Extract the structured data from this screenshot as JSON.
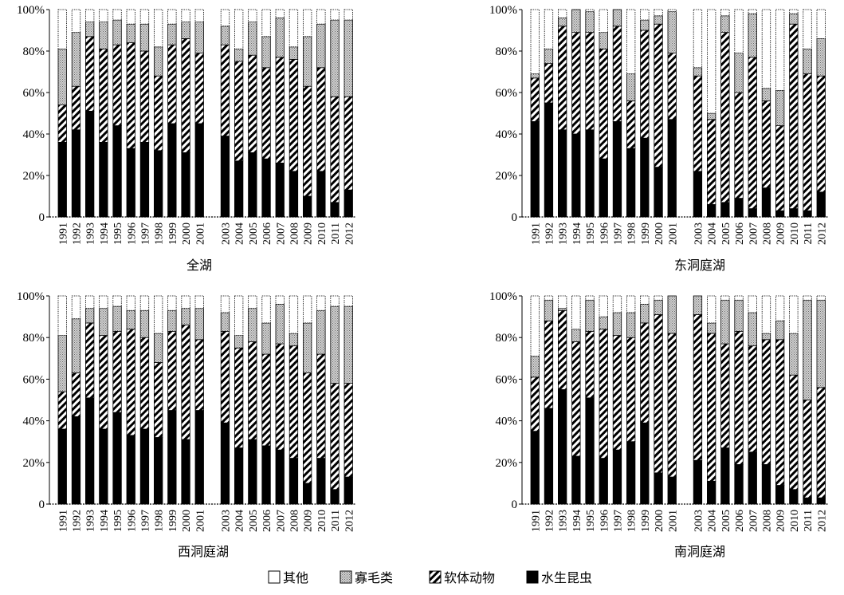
{
  "colors": {
    "insect": "#000000",
    "mollusc_stroke": "#000000",
    "oligo_fill": "#b8b8b8",
    "other": "#ffffff",
    "axis": "#000000"
  },
  "chart_data": [
    {
      "type": "bar",
      "stacked": true,
      "percent": true,
      "title": "全湖",
      "ylim": [
        0,
        100
      ],
      "yticks": [
        "0",
        "20%",
        "40%",
        "60%",
        "80%",
        "100%"
      ],
      "categories": [
        "1991",
        "1992",
        "1993",
        "1994",
        "1995",
        "1996",
        "1997",
        "1998",
        "1999",
        "2000",
        "2001",
        "2003",
        "2004",
        "2005",
        "2006",
        "2007",
        "2008",
        "2009",
        "2010",
        "2011",
        "2012"
      ],
      "series": [
        {
          "name": "水生昆虫",
          "values": [
            36,
            42,
            51,
            36,
            44,
            33,
            36,
            32,
            45,
            31,
            45,
            39,
            27,
            31,
            28,
            26,
            22,
            10,
            22,
            7,
            13
          ]
        },
        {
          "name": "软体动物",
          "values": [
            18,
            21,
            36,
            45,
            39,
            51,
            44,
            36,
            38,
            55,
            34,
            44,
            48,
            47,
            44,
            51,
            54,
            53,
            50,
            51,
            45
          ]
        },
        {
          "name": "寡毛类",
          "values": [
            27,
            26,
            7,
            13,
            12,
            9,
            13,
            14,
            10,
            8,
            15,
            9,
            6,
            16,
            15,
            19,
            6,
            24,
            21,
            37,
            37
          ]
        },
        {
          "name": "其他",
          "values": [
            19,
            11,
            6,
            6,
            5,
            7,
            7,
            18,
            7,
            6,
            6,
            8,
            19,
            6,
            13,
            4,
            18,
            13,
            7,
            5,
            5
          ]
        }
      ]
    },
    {
      "type": "bar",
      "stacked": true,
      "percent": true,
      "title": "东洞庭湖",
      "ylim": [
        0,
        100
      ],
      "yticks": [
        "0",
        "20%",
        "40%",
        "60%",
        "80%",
        "100%"
      ],
      "categories": [
        "1991",
        "1992",
        "1993",
        "1994",
        "1995",
        "1996",
        "1997",
        "1998",
        "1999",
        "2000",
        "2001",
        "2003",
        "2004",
        "2005",
        "2006",
        "2007",
        "2008",
        "2009",
        "2010",
        "2011",
        "2012"
      ],
      "series": [
        {
          "name": "水生昆虫",
          "values": [
            46,
            55,
            42,
            40,
            42,
            28,
            46,
            33,
            38,
            24,
            47,
            22,
            6,
            7,
            9,
            4,
            14,
            3,
            4,
            3,
            12
          ]
        },
        {
          "name": "软体动物",
          "values": [
            21,
            19,
            50,
            49,
            47,
            53,
            46,
            23,
            52,
            69,
            32,
            46,
            41,
            82,
            51,
            73,
            42,
            41,
            89,
            66,
            56
          ]
        },
        {
          "name": "寡毛类",
          "values": [
            2,
            7,
            4,
            11,
            10,
            8,
            8,
            13,
            5,
            4,
            20,
            4,
            3,
            8,
            19,
            21,
            6,
            17,
            5,
            12,
            18
          ]
        },
        {
          "name": "其他",
          "values": [
            31,
            19,
            4,
            0,
            1,
            11,
            0,
            31,
            5,
            3,
            1,
            28,
            50,
            3,
            21,
            2,
            38,
            39,
            2,
            19,
            14
          ]
        }
      ]
    },
    {
      "type": "bar",
      "stacked": true,
      "percent": true,
      "title": "西洞庭湖",
      "ylim": [
        0,
        100
      ],
      "yticks": [
        "0",
        "20%",
        "40%",
        "60%",
        "80%",
        "100%"
      ],
      "categories": [
        "1991",
        "1992",
        "1993",
        "1994",
        "1995",
        "1996",
        "1997",
        "1998",
        "1999",
        "2000",
        "2001",
        "2003",
        "2004",
        "2005",
        "2006",
        "2007",
        "2008",
        "2009",
        "2010",
        "2011",
        "2012"
      ],
      "series": [
        {
          "name": "水生昆虫",
          "values": [
            36,
            42,
            51,
            36,
            44,
            33,
            36,
            32,
            45,
            31,
            45,
            39,
            27,
            31,
            28,
            26,
            22,
            10,
            22,
            7,
            13
          ]
        },
        {
          "name": "软体动物",
          "values": [
            18,
            21,
            36,
            45,
            39,
            51,
            44,
            36,
            38,
            55,
            34,
            44,
            48,
            47,
            44,
            51,
            54,
            53,
            50,
            51,
            45
          ]
        },
        {
          "name": "寡毛类",
          "values": [
            27,
            26,
            7,
            13,
            12,
            9,
            13,
            14,
            10,
            8,
            15,
            9,
            6,
            16,
            15,
            19,
            6,
            24,
            21,
            37,
            37
          ]
        },
        {
          "name": "其他",
          "values": [
            19,
            11,
            6,
            6,
            5,
            7,
            7,
            18,
            7,
            6,
            6,
            8,
            19,
            6,
            13,
            4,
            18,
            13,
            7,
            5,
            5
          ]
        }
      ]
    },
    {
      "type": "bar",
      "stacked": true,
      "percent": true,
      "title": "南洞庭湖",
      "ylim": [
        0,
        100
      ],
      "yticks": [
        "0",
        "20%",
        "40%",
        "60%",
        "80%",
        "100%"
      ],
      "categories": [
        "1991",
        "1992",
        "1993",
        "1994",
        "1995",
        "1996",
        "1997",
        "1998",
        "1999",
        "2000",
        "2001",
        "2003",
        "2004",
        "2005",
        "2006",
        "2007",
        "2008",
        "2009",
        "2010",
        "2011",
        "2012"
      ],
      "series": [
        {
          "name": "水生昆虫",
          "values": [
            35,
            46,
            55,
            23,
            51,
            22,
            26,
            30,
            39,
            15,
            13,
            21,
            11,
            27,
            19,
            25,
            19,
            9,
            7,
            3,
            3
          ]
        },
        {
          "name": "软体动物",
          "values": [
            26,
            42,
            38,
            55,
            32,
            62,
            55,
            50,
            48,
            76,
            69,
            70,
            71,
            50,
            64,
            51,
            60,
            70,
            55,
            47,
            53
          ]
        },
        {
          "name": "寡毛类",
          "values": [
            10,
            10,
            1,
            6,
            15,
            6,
            11,
            12,
            9,
            7,
            18,
            9,
            5,
            21,
            15,
            16,
            3,
            9,
            20,
            48,
            42
          ]
        },
        {
          "name": "其他",
          "values": [
            29,
            2,
            6,
            16,
            2,
            10,
            8,
            8,
            4,
            2,
            0,
            0,
            13,
            2,
            2,
            8,
            18,
            12,
            18,
            2,
            2
          ]
        }
      ]
    }
  ],
  "legend": [
    {
      "key": "other",
      "label": "其他"
    },
    {
      "key": "oligo",
      "label": "寡毛类"
    },
    {
      "key": "mollusc",
      "label": "软体动物"
    },
    {
      "key": "insect",
      "label": "水生昆虫"
    }
  ]
}
